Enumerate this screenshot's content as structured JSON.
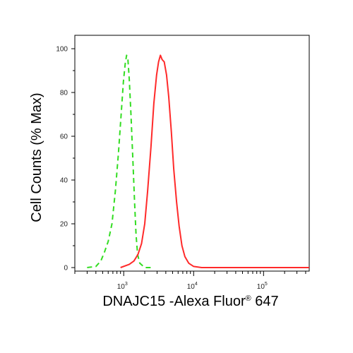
{
  "chart_data": {
    "type": "line",
    "xlabel": "DNAJC15 -Alexa Fluor® 647",
    "xlabel_parts": {
      "main": "DNAJC15 -Alexa Fluor",
      "sup": "®",
      "tail": " 647"
    },
    "ylabel": "Cell Counts (% Max)",
    "x_scale": "log",
    "xlim": [
      200,
      450000
    ],
    "ylim": [
      0,
      100
    ],
    "y_ticks": [
      0,
      20,
      40,
      60,
      80,
      100
    ],
    "y_tick_labels": [
      "0",
      "20",
      "40",
      "60",
      "80",
      "100"
    ],
    "x_major_ticks": [
      1000,
      10000,
      100000
    ],
    "x_tick_labels": [
      {
        "base": "10",
        "exp": "3"
      },
      {
        "base": "10",
        "exp": "4"
      },
      {
        "base": "10",
        "exp": "5"
      }
    ],
    "grid": false,
    "legend": null,
    "series": [
      {
        "color": "#33dd22",
        "style": "dashed",
        "points": [
          [
            300,
            0
          ],
          [
            400,
            0.5
          ],
          [
            470,
            3
          ],
          [
            530,
            7
          ],
          [
            600,
            12
          ],
          [
            680,
            20
          ],
          [
            760,
            35
          ],
          [
            840,
            52
          ],
          [
            920,
            70
          ],
          [
            990,
            85
          ],
          [
            1050,
            93
          ],
          [
            1100,
            97
          ],
          [
            1150,
            95
          ],
          [
            1200,
            86
          ],
          [
            1270,
            70
          ],
          [
            1350,
            50
          ],
          [
            1430,
            30
          ],
          [
            1500,
            15
          ],
          [
            1580,
            6
          ],
          [
            1700,
            2
          ],
          [
            2000,
            0
          ],
          [
            2500,
            0
          ]
        ]
      },
      {
        "color": "#ff2a2a",
        "style": "solid",
        "points": [
          [
            900,
            0
          ],
          [
            1200,
            1.5
          ],
          [
            1400,
            3
          ],
          [
            1600,
            6
          ],
          [
            1800,
            11
          ],
          [
            2000,
            20
          ],
          [
            2200,
            35
          ],
          [
            2450,
            55
          ],
          [
            2700,
            75
          ],
          [
            2950,
            88
          ],
          [
            3150,
            94
          ],
          [
            3350,
            97
          ],
          [
            3550,
            95
          ],
          [
            3800,
            94
          ],
          [
            4100,
            88
          ],
          [
            4400,
            78
          ],
          [
            4800,
            62
          ],
          [
            5200,
            45
          ],
          [
            5700,
            30
          ],
          [
            6200,
            19
          ],
          [
            6800,
            10
          ],
          [
            7500,
            5
          ],
          [
            8500,
            2
          ],
          [
            10000,
            0.5
          ],
          [
            13000,
            0
          ],
          [
            30000,
            0
          ],
          [
            100000,
            0
          ],
          [
            450000,
            0
          ]
        ]
      }
    ]
  }
}
